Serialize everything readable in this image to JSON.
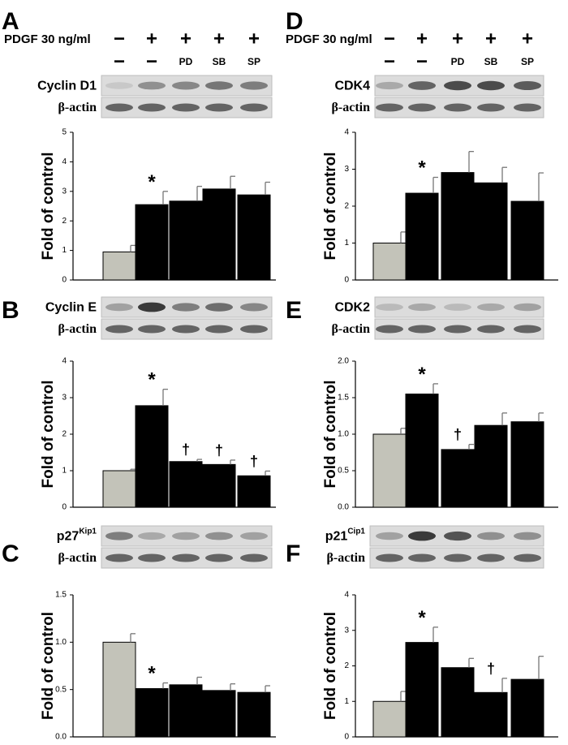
{
  "figure": {
    "treatment_header": {
      "label": "PDGF 30 ng/ml",
      "row1": [
        "−",
        "+",
        "+",
        "+",
        "+"
      ],
      "row2": [
        "−",
        "−",
        "PD",
        "SB",
        "SP"
      ]
    },
    "loading_control": "β-actin",
    "bar_colors": {
      "control": "#c3c3b9",
      "treated": "#000000"
    }
  },
  "panels": [
    {
      "letter": "A",
      "blot_label": "Cyclin D1",
      "blot_sup": "",
      "show_header": true
    },
    {
      "letter": "B",
      "blot_label": "Cyclin E",
      "blot_sup": "",
      "show_header": false
    },
    {
      "letter": "C",
      "blot_label": "p27",
      "blot_sup": "Kip1",
      "show_header": false
    },
    {
      "letter": "D",
      "blot_label": "CDK4",
      "blot_sup": "",
      "show_header": true
    },
    {
      "letter": "E",
      "blot_label": "CDK2",
      "blot_sup": "",
      "show_header": false
    },
    {
      "letter": "F",
      "blot_label": "p21",
      "blot_sup": "Cip1",
      "show_header": false
    }
  ],
  "chart_data": [
    {
      "type": "bar",
      "panel": "A",
      "ylabel": "Fold of control",
      "ylim": [
        0,
        5
      ],
      "yticks": [
        "0",
        "1",
        "2",
        "3",
        "4",
        "5"
      ],
      "values": [
        0.95,
        2.55,
        2.67,
        3.08,
        2.88
      ],
      "errors": [
        0.22,
        0.45,
        0.5,
        0.43,
        0.43
      ],
      "marks": [
        "",
        "*",
        "",
        "",
        ""
      ]
    },
    {
      "type": "bar",
      "panel": "B",
      "ylabel": "Fold of control",
      "ylim": [
        0,
        4
      ],
      "yticks": [
        "0",
        "1",
        "2",
        "3",
        "4"
      ],
      "values": [
        1.0,
        2.78,
        1.25,
        1.17,
        0.86
      ],
      "errors": [
        0.04,
        0.45,
        0.06,
        0.12,
        0.13
      ],
      "marks": [
        "",
        "*",
        "†",
        "†",
        "†"
      ]
    },
    {
      "type": "bar",
      "panel": "C",
      "ylabel": "Fold of control",
      "ylim": [
        0,
        1.5
      ],
      "yticks": [
        "0.0",
        "0.5",
        "1.0",
        "1.5"
      ],
      "values": [
        1.0,
        0.51,
        0.55,
        0.49,
        0.47
      ],
      "errors": [
        0.09,
        0.06,
        0.08,
        0.07,
        0.07
      ],
      "marks": [
        "",
        "*",
        "",
        "",
        ""
      ]
    },
    {
      "type": "bar",
      "panel": "D",
      "ylabel": "Fold of control",
      "ylim": [
        0,
        4
      ],
      "yticks": [
        "0",
        "1",
        "2",
        "3",
        "4"
      ],
      "values": [
        1.0,
        2.35,
        2.91,
        2.63,
        2.13
      ],
      "errors": [
        0.3,
        0.43,
        0.57,
        0.42,
        0.77
      ],
      "marks": [
        "",
        "*",
        "",
        "",
        ""
      ]
    },
    {
      "type": "bar",
      "panel": "E",
      "ylabel": "Fold of control",
      "ylim": [
        0,
        2.0
      ],
      "yticks": [
        "0.0",
        "0.5",
        "1.0",
        "1.5",
        "2.0"
      ],
      "values": [
        1.0,
        1.55,
        0.79,
        1.12,
        1.17
      ],
      "errors": [
        0.08,
        0.14,
        0.07,
        0.17,
        0.12
      ],
      "marks": [
        "",
        "*",
        "†",
        "",
        ""
      ]
    },
    {
      "type": "bar",
      "panel": "F",
      "ylabel": "Fold of control",
      "ylim": [
        0,
        4
      ],
      "yticks": [
        "0",
        "1",
        "2",
        "3",
        "4"
      ],
      "values": [
        1.0,
        2.66,
        1.95,
        1.25,
        1.62
      ],
      "errors": [
        0.28,
        0.43,
        0.26,
        0.4,
        0.65
      ],
      "marks": [
        "",
        "*",
        "",
        "†",
        ""
      ]
    }
  ]
}
